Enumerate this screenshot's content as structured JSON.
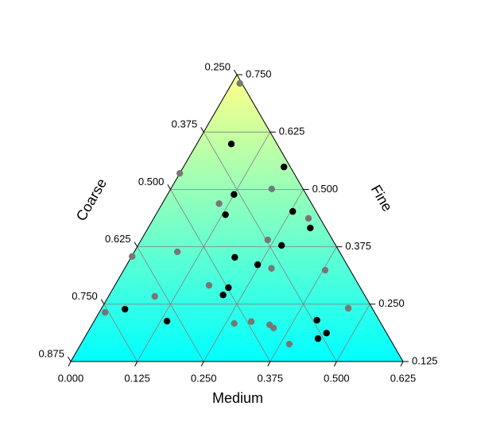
{
  "chart_data": {
    "type": "ternary",
    "axis_labels": {
      "medium": "Medium",
      "fine": "Fine",
      "coarse": "Coarse"
    },
    "medium_lim": [
      0,
      0.625
    ],
    "fine_lim": [
      0.125,
      0.75
    ],
    "coarse_lim": [
      0.25,
      0.875
    ],
    "medium_ticks": [
      {
        "value": 0,
        "label": "0.000"
      },
      0.125,
      {
        "value": 0.25,
        "label": "0.250"
      },
      0.375,
      {
        "value": 0.5,
        "label": "0.500"
      },
      0.625
    ],
    "fine_ticks": [
      0.125,
      {
        "value": 0.25,
        "label": "0.250"
      },
      0.375,
      {
        "value": 0.5,
        "label": "0.500"
      },
      0.625,
      {
        "value": 0.75,
        "label": "0.750"
      }
    ],
    "coarse_ticks": [
      {
        "value": 0.25,
        "label": "0.250"
      },
      0.375,
      {
        "value": 0.5,
        "label": "0.500"
      },
      0.625,
      {
        "value": 0.75,
        "label": "0.750"
      },
      0.875
    ],
    "grid": true,
    "background_gradient": [
      "#ffff88",
      "#00ffff"
    ],
    "series": [
      {
        "color": "#000000",
        "medium": [
          0.065,
          0.189,
          0.125,
          0.131,
          0.254,
          0.305,
          0.27,
          0.195,
          0.246,
          0.216,
          0.214,
          0.045,
          0.137,
          0.418,
          0.45,
          0.44
        ],
        "fine": [
          0.599,
          0.549,
          0.489,
          0.445,
          0.452,
          0.416,
          0.378,
          0.352,
          0.336,
          0.286,
          0.27,
          0.239,
          0.213,
          0.215,
          0.187,
          0.175
        ]
      },
      {
        "color": "#777777",
        "medium": [
          0.015,
          0.0,
          0.19,
          0.107,
          0.291,
          0.238,
          0.001,
          0.081,
          0.276,
          0.379,
          0.177,
          0.087,
          0.464,
          0.011,
          0.266,
          0.296,
          0.334,
          0.345,
          0.392
        ],
        "fine": [
          0.731,
          0.535,
          0.501,
          0.469,
          0.437,
          0.39,
          0.354,
          0.364,
          0.328,
          0.324,
          0.291,
          0.267,
          0.241,
          0.232,
          0.208,
          0.212,
          0.205,
          0.198,
          0.163
        ]
      }
    ]
  }
}
